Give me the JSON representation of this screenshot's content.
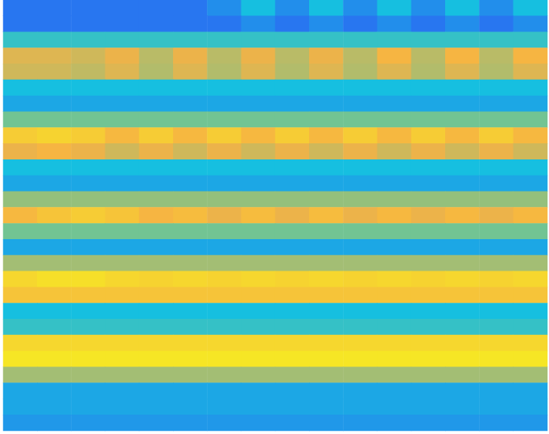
{
  "chart_data": {
    "type": "heatmap",
    "tick_labels": false,
    "grid": false,
    "zlim": [
      0,
      1
    ],
    "cells": [
      [
        0.35,
        0.35,
        0.35,
        0.35,
        0.35,
        0.35,
        0.4,
        0.5,
        0.4,
        0.5,
        0.4,
        0.5,
        0.4,
        0.5,
        0.4,
        0.5
      ],
      [
        0.35,
        0.35,
        0.35,
        0.35,
        0.35,
        0.35,
        0.35,
        0.4,
        0.35,
        0.4,
        0.35,
        0.4,
        0.35,
        0.4,
        0.35,
        0.4
      ],
      [
        0.55,
        0.55,
        0.55,
        0.55,
        0.55,
        0.55,
        0.55,
        0.55,
        0.55,
        0.55,
        0.55,
        0.55,
        0.55,
        0.55,
        0.55,
        0.55
      ],
      [
        0.8,
        0.8,
        0.78,
        0.82,
        0.75,
        0.82,
        0.75,
        0.82,
        0.75,
        0.82,
        0.75,
        0.84,
        0.75,
        0.84,
        0.75,
        0.84
      ],
      [
        0.78,
        0.78,
        0.76,
        0.8,
        0.74,
        0.8,
        0.74,
        0.8,
        0.74,
        0.8,
        0.74,
        0.8,
        0.74,
        0.8,
        0.74,
        0.8
      ],
      [
        0.5,
        0.5,
        0.5,
        0.5,
        0.5,
        0.5,
        0.5,
        0.5,
        0.5,
        0.5,
        0.5,
        0.5,
        0.5,
        0.5,
        0.5,
        0.5
      ],
      [
        0.45,
        0.45,
        0.45,
        0.45,
        0.45,
        0.45,
        0.45,
        0.45,
        0.45,
        0.45,
        0.45,
        0.45,
        0.45,
        0.45,
        0.45,
        0.45
      ],
      [
        0.65,
        0.65,
        0.65,
        0.65,
        0.65,
        0.65,
        0.65,
        0.65,
        0.65,
        0.65,
        0.65,
        0.65,
        0.65,
        0.65,
        0.65,
        0.65
      ],
      [
        0.9,
        0.92,
        0.9,
        0.85,
        0.9,
        0.85,
        0.9,
        0.85,
        0.9,
        0.85,
        0.9,
        0.85,
        0.9,
        0.85,
        0.9,
        0.85
      ],
      [
        0.82,
        0.84,
        0.82,
        0.78,
        0.82,
        0.78,
        0.82,
        0.78,
        0.82,
        0.78,
        0.82,
        0.78,
        0.82,
        0.78,
        0.82,
        0.78
      ],
      [
        0.5,
        0.5,
        0.5,
        0.5,
        0.5,
        0.5,
        0.5,
        0.5,
        0.5,
        0.5,
        0.5,
        0.5,
        0.5,
        0.5,
        0.5,
        0.5
      ],
      [
        0.45,
        0.45,
        0.45,
        0.45,
        0.45,
        0.45,
        0.45,
        0.45,
        0.45,
        0.45,
        0.45,
        0.45,
        0.45,
        0.45,
        0.45,
        0.45
      ],
      [
        0.7,
        0.7,
        0.7,
        0.7,
        0.7,
        0.7,
        0.7,
        0.7,
        0.7,
        0.7,
        0.7,
        0.7,
        0.7,
        0.7,
        0.7,
        0.7
      ],
      [
        0.85,
        0.88,
        0.9,
        0.88,
        0.84,
        0.86,
        0.82,
        0.86,
        0.82,
        0.86,
        0.82,
        0.85,
        0.82,
        0.85,
        0.82,
        0.85
      ],
      [
        0.65,
        0.65,
        0.65,
        0.65,
        0.65,
        0.65,
        0.65,
        0.65,
        0.65,
        0.65,
        0.65,
        0.65,
        0.65,
        0.65,
        0.65,
        0.65
      ],
      [
        0.45,
        0.45,
        0.45,
        0.45,
        0.45,
        0.45,
        0.45,
        0.45,
        0.45,
        0.45,
        0.45,
        0.45,
        0.45,
        0.45,
        0.45,
        0.45
      ],
      [
        0.72,
        0.72,
        0.72,
        0.72,
        0.72,
        0.72,
        0.72,
        0.72,
        0.72,
        0.72,
        0.72,
        0.72,
        0.72,
        0.72,
        0.72,
        0.72
      ],
      [
        0.93,
        0.95,
        0.95,
        0.93,
        0.92,
        0.93,
        0.92,
        0.93,
        0.92,
        0.93,
        0.92,
        0.93,
        0.92,
        0.93,
        0.92,
        0.93
      ],
      [
        0.88,
        0.88,
        0.88,
        0.88,
        0.88,
        0.88,
        0.88,
        0.88,
        0.88,
        0.88,
        0.88,
        0.88,
        0.88,
        0.88,
        0.88,
        0.88
      ],
      [
        0.5,
        0.5,
        0.5,
        0.5,
        0.5,
        0.5,
        0.5,
        0.5,
        0.5,
        0.5,
        0.5,
        0.5,
        0.5,
        0.5,
        0.5,
        0.5
      ],
      [
        0.55,
        0.55,
        0.55,
        0.55,
        0.55,
        0.55,
        0.55,
        0.55,
        0.55,
        0.55,
        0.55,
        0.55,
        0.55,
        0.55,
        0.55,
        0.55
      ],
      [
        0.93,
        0.93,
        0.93,
        0.93,
        0.93,
        0.93,
        0.93,
        0.93,
        0.93,
        0.93,
        0.93,
        0.93,
        0.93,
        0.93,
        0.93,
        0.93
      ],
      [
        0.97,
        0.97,
        0.97,
        0.97,
        0.97,
        0.97,
        0.97,
        0.97,
        0.97,
        0.97,
        0.97,
        0.97,
        0.97,
        0.97,
        0.97,
        0.97
      ],
      [
        0.72,
        0.72,
        0.72,
        0.72,
        0.72,
        0.72,
        0.72,
        0.72,
        0.72,
        0.72,
        0.72,
        0.72,
        0.72,
        0.72,
        0.72,
        0.72
      ],
      [
        0.45,
        0.45,
        0.45,
        0.45,
        0.45,
        0.45,
        0.45,
        0.45,
        0.45,
        0.45,
        0.45,
        0.45,
        0.45,
        0.45,
        0.45,
        0.45
      ],
      [
        0.45,
        0.45,
        0.45,
        0.45,
        0.45,
        0.45,
        0.45,
        0.45,
        0.45,
        0.45,
        0.45,
        0.45,
        0.45,
        0.45,
        0.45,
        0.45
      ],
      [
        0.42,
        0.42,
        0.42,
        0.42,
        0.42,
        0.42,
        0.42,
        0.42,
        0.42,
        0.42,
        0.42,
        0.42,
        0.42,
        0.42,
        0.42,
        0.42
      ]
    ]
  }
}
